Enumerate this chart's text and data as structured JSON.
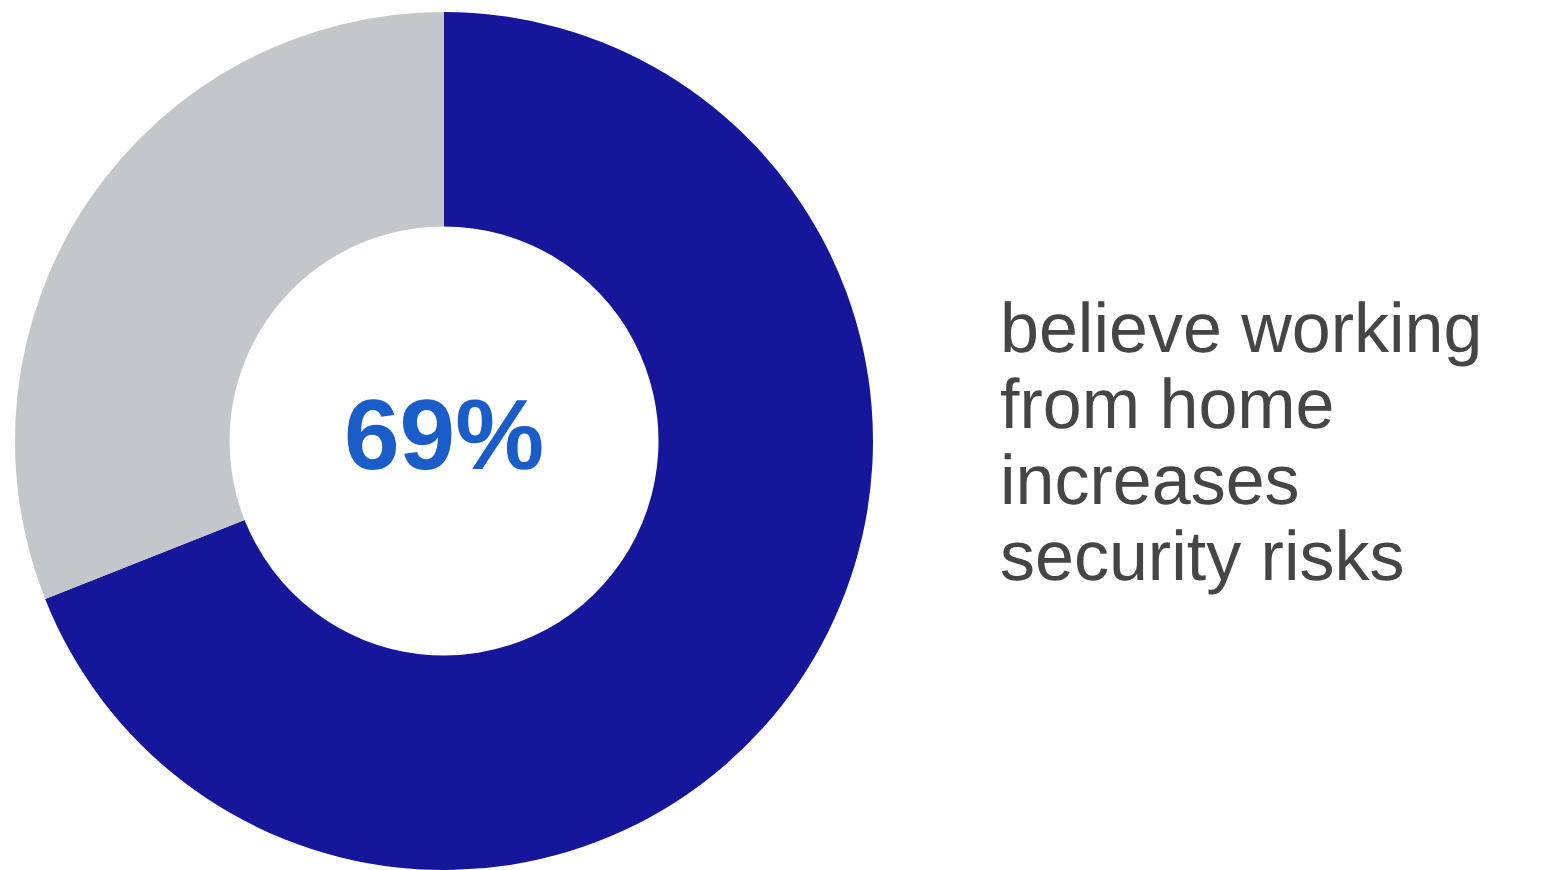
{
  "chart_data": {
    "type": "donut",
    "title": "believe working from home increases security risks",
    "categories": [
      null,
      null
    ],
    "values": [
      69,
      31
    ],
    "colors": [
      "#15169a",
      "#c3c6cb"
    ],
    "value_labels": [
      "69%",
      null
    ]
  }
}
